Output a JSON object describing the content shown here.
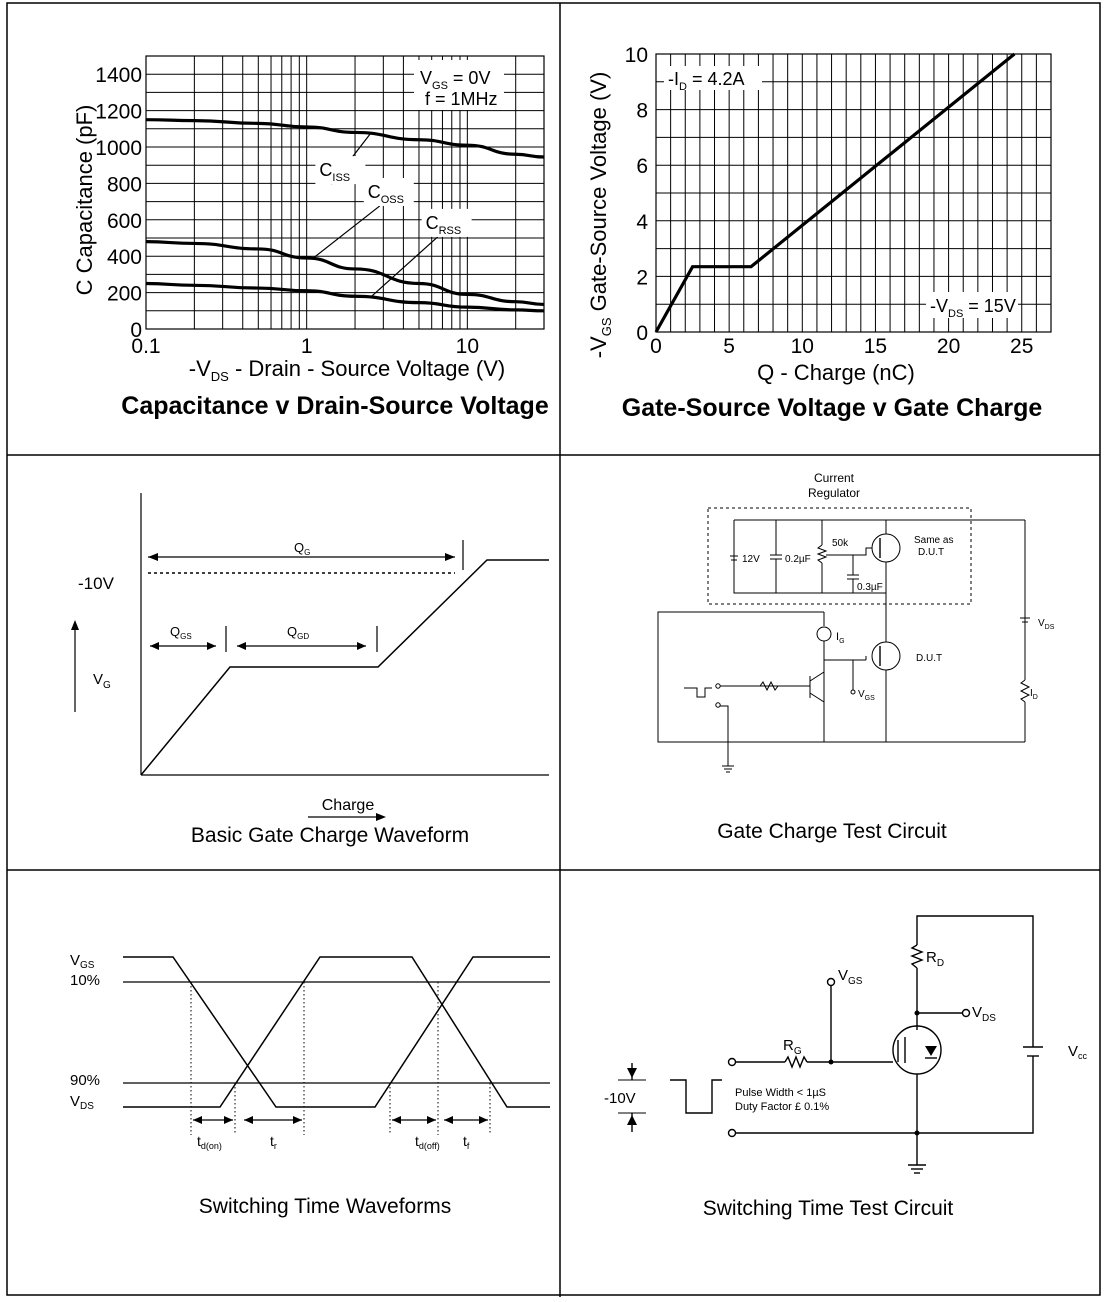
{
  "chart_data": [
    {
      "type": "line",
      "title": "Capacitance v Drain-Source Voltage",
      "xlabel_parts": [
        "-V",
        "DS",
        " - Drain - Source Voltage (V)"
      ],
      "ylabel": "C  Capacitance (pF)",
      "xscale": "log",
      "xlim": [
        0.1,
        30
      ],
      "ylim": [
        0,
        1500
      ],
      "x_ticks": [
        0.1,
        1,
        10
      ],
      "x_tick_labels": [
        "0.1",
        "1",
        "10"
      ],
      "y_ticks": [
        0,
        200,
        400,
        600,
        800,
        1000,
        1200,
        1400
      ],
      "y_tick_labels": [
        "0",
        "200",
        "400",
        "600",
        "800",
        "1000",
        "1200",
        "1400"
      ],
      "grid": true,
      "conditions": [
        {
          "parts": [
            "V",
            "GS",
            " = 0V"
          ]
        },
        {
          "parts": [
            "f = 1MHz"
          ]
        }
      ],
      "series": [
        {
          "name": "C",
          "sub": "ISS",
          "x": [
            0.1,
            0.2,
            0.5,
            1,
            2,
            5,
            10,
            20,
            30
          ],
          "y": [
            1150,
            1145,
            1130,
            1110,
            1080,
            1040,
            1010,
            960,
            945
          ]
        },
        {
          "name": "C",
          "sub": "OSS",
          "x": [
            0.1,
            0.2,
            0.5,
            1,
            2,
            5,
            10,
            20,
            30
          ],
          "y": [
            480,
            470,
            440,
            390,
            330,
            250,
            190,
            150,
            135
          ]
        },
        {
          "name": "C",
          "sub": "RSS",
          "x": [
            0.1,
            0.2,
            0.5,
            1,
            2,
            5,
            10,
            20,
            30
          ],
          "y": [
            250,
            240,
            225,
            210,
            180,
            145,
            120,
            105,
            100
          ]
        }
      ]
    },
    {
      "type": "line",
      "title": "Gate-Source Voltage v Gate Charge",
      "xlabel": "Q - Charge (nC)",
      "ylabel_parts": [
        "-V",
        "GS",
        " Gate-Source Voltage (V)"
      ],
      "xlim": [
        0,
        27
      ],
      "ylim": [
        0,
        10
      ],
      "x_ticks": [
        0,
        5,
        10,
        15,
        20,
        25
      ],
      "y_ticks": [
        0,
        2,
        4,
        6,
        8,
        10
      ],
      "grid": true,
      "annotations": [
        {
          "parts": [
            "-I",
            "D",
            " = 4.2A"
          ]
        },
        {
          "parts": [
            "-V",
            "DS",
            " = 15V"
          ]
        }
      ],
      "series": [
        {
          "x": [
            0,
            2.5,
            6.5,
            24.5
          ],
          "y": [
            0,
            2.35,
            2.35,
            10
          ]
        }
      ]
    }
  ],
  "waveform": {
    "title": "Basic Gate Charge Waveform",
    "axis_label": "Charge",
    "level_label": "-10V",
    "vg": {
      "main": "V",
      "sub": "G"
    },
    "qg": {
      "main": "Q",
      "sub": "G"
    },
    "qgs": {
      "main": "Q",
      "sub": "GS"
    },
    "qgd": {
      "main": "Q",
      "sub": "GD"
    }
  },
  "gate_circuit": {
    "title": "Gate Charge Test Circuit",
    "regulator_line1": "Current",
    "regulator_line2": "Regulator",
    "v12": "12V",
    "c02": "0.2µF",
    "r50k": "50k",
    "c03": "0.3µF",
    "same_line1": "Same as",
    "same_line2": "D.U.T",
    "dut": "D.U.T",
    "ig": {
      "main": "I",
      "sub": "G"
    },
    "vgs": {
      "main": "V",
      "sub": "GS"
    },
    "vds": {
      "main": "V",
      "sub": "DS"
    },
    "id": {
      "main": "I",
      "sub": "D"
    }
  },
  "switching_wave": {
    "title": "Switching Time Waveforms",
    "vgs": {
      "main": "V",
      "sub": "GS"
    },
    "vds": {
      "main": "V",
      "sub": "DS"
    },
    "p10": "10%",
    "p90": "90%",
    "tdon": {
      "main": "t",
      "sub": "d(on)"
    },
    "tr": {
      "main": "t",
      "sub": "r"
    },
    "tdoff": {
      "main": "t",
      "sub": "d(off)"
    },
    "tf": {
      "main": "t",
      "sub": "f"
    }
  },
  "switching_circuit": {
    "title": "Switching Time Test Circuit",
    "rd": {
      "main": "R",
      "sub": "D"
    },
    "rg": {
      "main": "R",
      "sub": "G"
    },
    "vgs": {
      "main": "V",
      "sub": "GS"
    },
    "vds": {
      "main": "V",
      "sub": "DS"
    },
    "vcc": {
      "main": "V",
      "sub": "cc"
    },
    "pulse_width": "Pulse Width < 1µS",
    "duty_factor": "Duty Factor £  0.1%",
    "level": "-10V"
  }
}
